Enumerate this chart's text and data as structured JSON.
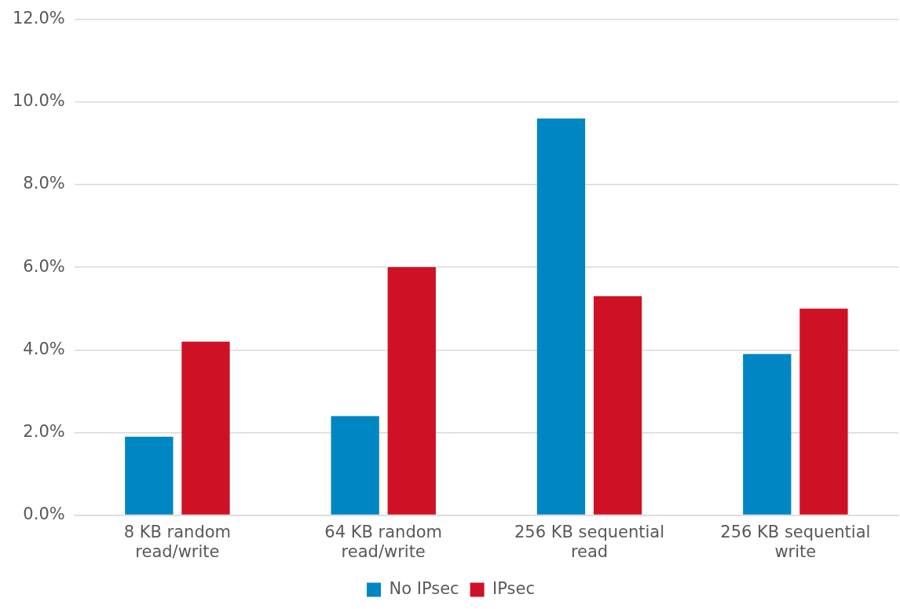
{
  "chart_data": {
    "type": "bar",
    "categories": [
      "8 KB random read/write",
      "64 KB random read/write",
      "256 KB sequential read",
      "256 KB sequential write"
    ],
    "series": [
      {
        "name": "No IPsec",
        "color": "#0086c3",
        "values": [
          1.9,
          2.4,
          9.6,
          3.9
        ]
      },
      {
        "name": "IPsec",
        "color": "#cf1126",
        "values": [
          4.2,
          6.0,
          5.3,
          5.0
        ]
      }
    ],
    "ylim": [
      0,
      12
    ],
    "yticks": [
      {
        "value": 0,
        "label": "0.0%"
      },
      {
        "value": 2,
        "label": "2.0%"
      },
      {
        "value": 4,
        "label": "4.0%"
      },
      {
        "value": 6,
        "label": "6.0%"
      },
      {
        "value": 8,
        "label": "8.0%"
      },
      {
        "value": 10,
        "label": "10.0%"
      },
      {
        "value": 12,
        "label": "12.0%"
      }
    ],
    "grid": "y",
    "legend": "bottom"
  }
}
